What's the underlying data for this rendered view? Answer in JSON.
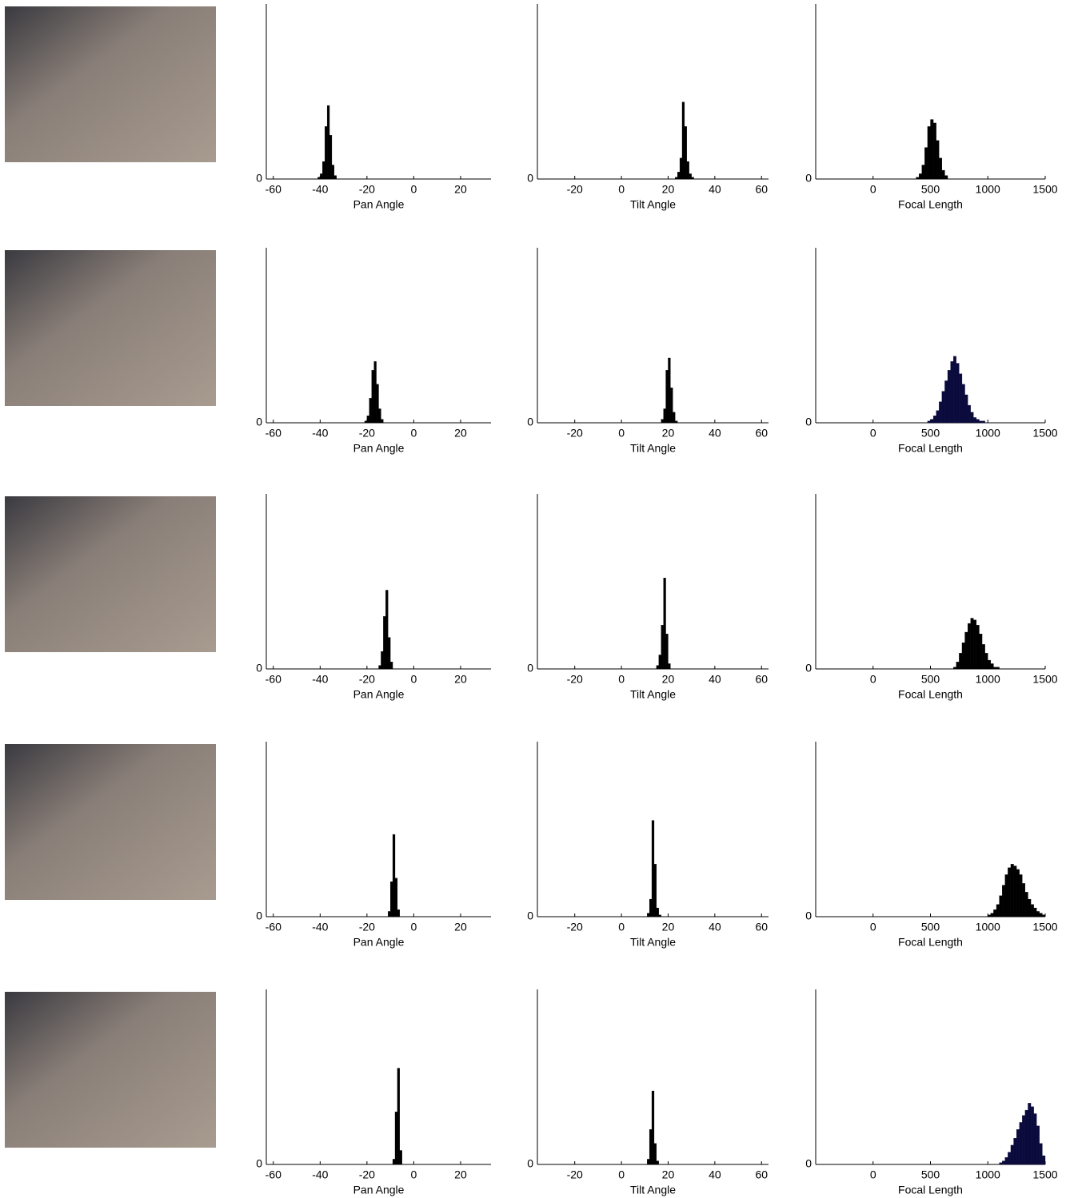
{
  "chart_data": [
    {
      "type": "histogram",
      "xlabel": "Pan Angle",
      "bins": [
        -41,
        -40,
        -39,
        -38,
        -37,
        -36,
        -35,
        -34,
        -33
      ],
      "counts": [
        1,
        3,
        10,
        30,
        42,
        25,
        8,
        2
      ],
      "xlim": [
        -63,
        33
      ],
      "ylim": [
        0,
        100
      ],
      "xticks": [
        -60,
        -40,
        -20,
        0,
        20
      ],
      "yticks": [
        0
      ],
      "color": "#000000"
    },
    {
      "type": "histogram",
      "xlabel": "Tilt Angle",
      "bins": [
        23,
        24,
        25,
        26,
        27,
        28,
        29,
        30,
        31
      ],
      "counts": [
        1,
        4,
        12,
        44,
        30,
        10,
        3,
        1
      ],
      "xlim": [
        -36,
        63
      ],
      "ylim": [
        0,
        100
      ],
      "xticks": [
        -20,
        0,
        20,
        40,
        60
      ],
      "yticks": [
        0
      ],
      "color": "#000000"
    },
    {
      "type": "histogram",
      "xlabel": "Focal Length",
      "bins": [
        375,
        400,
        425,
        450,
        475,
        500,
        525,
        550,
        575,
        600,
        625,
        650
      ],
      "counts": [
        1,
        3,
        8,
        18,
        30,
        34,
        32,
        22,
        12,
        5,
        2
      ],
      "xlim": [
        -500,
        1500
      ],
      "ylim": [
        0,
        100
      ],
      "xticks": [
        0,
        500,
        1000,
        1500
      ],
      "yticks": [
        0
      ],
      "color": "#000000"
    },
    {
      "type": "histogram",
      "xlabel": "Pan Angle",
      "bins": [
        -21,
        -20,
        -19,
        -18,
        -17,
        -16,
        -15,
        -14,
        -13
      ],
      "counts": [
        1,
        4,
        14,
        30,
        35,
        22,
        8,
        2
      ],
      "xlim": [
        -63,
        33
      ],
      "ylim": [
        0,
        100
      ],
      "xticks": [
        -60,
        -40,
        -20,
        0,
        20
      ],
      "yticks": [
        0
      ],
      "color": "#000000"
    },
    {
      "type": "histogram",
      "xlabel": "Tilt Angle",
      "bins": [
        17,
        18,
        19,
        20,
        21,
        22,
        23,
        24
      ],
      "counts": [
        2,
        8,
        30,
        37,
        20,
        6,
        1
      ],
      "xlim": [
        -36,
        63
      ],
      "ylim": [
        0,
        100
      ],
      "xticks": [
        -20,
        0,
        20,
        40,
        60
      ],
      "yticks": [
        0
      ],
      "color": "#000000"
    },
    {
      "type": "histogram",
      "xlabel": "Focal Length",
      "bins": [
        475,
        500,
        525,
        550,
        575,
        600,
        625,
        650,
        675,
        700,
        725,
        750,
        775,
        800,
        825,
        850,
        875,
        900,
        925,
        950,
        975
      ],
      "counts": [
        1,
        2,
        4,
        7,
        12,
        18,
        24,
        30,
        35,
        38,
        34,
        28,
        22,
        16,
        10,
        6,
        3,
        2,
        1,
        1
      ],
      "xlim": [
        -500,
        1500
      ],
      "ylim": [
        0,
        100
      ],
      "xticks": [
        0,
        500,
        1000,
        1500
      ],
      "yticks": [
        0
      ],
      "color": "#0a0a3c"
    },
    {
      "type": "histogram",
      "xlabel": "Pan Angle",
      "bins": [
        -15,
        -14,
        -13,
        -12,
        -11,
        -10,
        -9
      ],
      "counts": [
        2,
        10,
        30,
        45,
        18,
        4
      ],
      "xlim": [
        -63,
        33
      ],
      "ylim": [
        0,
        100
      ],
      "xticks": [
        -60,
        -40,
        -20,
        0,
        20
      ],
      "yticks": [
        0
      ],
      "color": "#000000"
    },
    {
      "type": "histogram",
      "xlabel": "Tilt Angle",
      "bins": [
        15,
        16,
        17,
        18,
        19,
        20,
        21
      ],
      "counts": [
        2,
        8,
        25,
        52,
        20,
        3
      ],
      "xlim": [
        -36,
        63
      ],
      "ylim": [
        0,
        100
      ],
      "xticks": [
        -20,
        0,
        20,
        40,
        60
      ],
      "yticks": [
        0
      ],
      "color": "#000000"
    },
    {
      "type": "histogram",
      "xlabel": "Focal Length",
      "bins": [
        700,
        725,
        750,
        775,
        800,
        825,
        850,
        875,
        900,
        925,
        950,
        975,
        1000,
        1025,
        1050,
        1075,
        1100
      ],
      "counts": [
        1,
        4,
        9,
        15,
        21,
        26,
        29,
        28,
        25,
        20,
        14,
        9,
        5,
        3,
        1,
        1
      ],
      "xlim": [
        -500,
        1500
      ],
      "ylim": [
        0,
        100
      ],
      "xticks": [
        0,
        500,
        1000,
        1500
      ],
      "yticks": [
        0
      ],
      "color": "#000000"
    },
    {
      "type": "histogram",
      "xlabel": "Pan Angle",
      "bins": [
        -11,
        -10,
        -9,
        -8,
        -7,
        -6
      ],
      "counts": [
        3,
        20,
        47,
        22,
        4
      ],
      "xlim": [
        -63,
        33
      ],
      "ylim": [
        0,
        100
      ],
      "xticks": [
        -60,
        -40,
        -20,
        0,
        20
      ],
      "yticks": [
        0
      ],
      "color": "#000000"
    },
    {
      "type": "histogram",
      "xlabel": "Tilt Angle",
      "bins": [
        11,
        12,
        13,
        14,
        15,
        16,
        17
      ],
      "counts": [
        2,
        10,
        55,
        30,
        5,
        1
      ],
      "xlim": [
        -36,
        63
      ],
      "ylim": [
        0,
        100
      ],
      "xticks": [
        -20,
        0,
        20,
        40,
        60
      ],
      "yticks": [
        0
      ],
      "color": "#000000"
    },
    {
      "type": "histogram",
      "xlabel": "Focal Length",
      "bins": [
        1000,
        1025,
        1050,
        1075,
        1100,
        1125,
        1150,
        1175,
        1200,
        1225,
        1250,
        1275,
        1300,
        1325,
        1350,
        1375,
        1400,
        1425,
        1450,
        1475,
        1500
      ],
      "counts": [
        1,
        2,
        4,
        7,
        12,
        18,
        24,
        28,
        30,
        29,
        27,
        24,
        19,
        14,
        10,
        7,
        5,
        3,
        2,
        1
      ],
      "xlim": [
        -500,
        1500
      ],
      "ylim": [
        0,
        100
      ],
      "xticks": [
        0,
        500,
        1000,
        1500
      ],
      "yticks": [
        0
      ],
      "color": "#000000"
    },
    {
      "type": "histogram",
      "xlabel": "Pan Angle",
      "bins": [
        -9,
        -8,
        -7,
        -6,
        -5
      ],
      "counts": [
        3,
        30,
        55,
        8
      ],
      "xlim": [
        -63,
        33
      ],
      "ylim": [
        0,
        100
      ],
      "xticks": [
        -60,
        -40,
        -20,
        0,
        20
      ],
      "yticks": [
        0
      ],
      "color": "#000000"
    },
    {
      "type": "histogram",
      "xlabel": "Tilt Angle",
      "bins": [
        11,
        12,
        13,
        14,
        15,
        16
      ],
      "counts": [
        3,
        20,
        42,
        12,
        2
      ],
      "xlim": [
        -36,
        63
      ],
      "ylim": [
        0,
        100
      ],
      "xticks": [
        -20,
        0,
        20,
        40,
        60
      ],
      "yticks": [
        0
      ],
      "color": "#000000"
    },
    {
      "type": "histogram",
      "xlabel": "Focal Length",
      "bins": [
        1100,
        1125,
        1150,
        1175,
        1200,
        1225,
        1250,
        1275,
        1300,
        1325,
        1350,
        1375,
        1400,
        1425,
        1450,
        1475,
        1500
      ],
      "counts": [
        1,
        2,
        4,
        7,
        11,
        15,
        20,
        24,
        28,
        31,
        35,
        33,
        29,
        22,
        12,
        5
      ],
      "xlim": [
        -500,
        1500
      ],
      "ylim": [
        0,
        100
      ],
      "xticks": [
        0,
        500,
        1000,
        1500
      ],
      "yticks": [
        0
      ],
      "color": "#0a0a3c"
    }
  ]
}
